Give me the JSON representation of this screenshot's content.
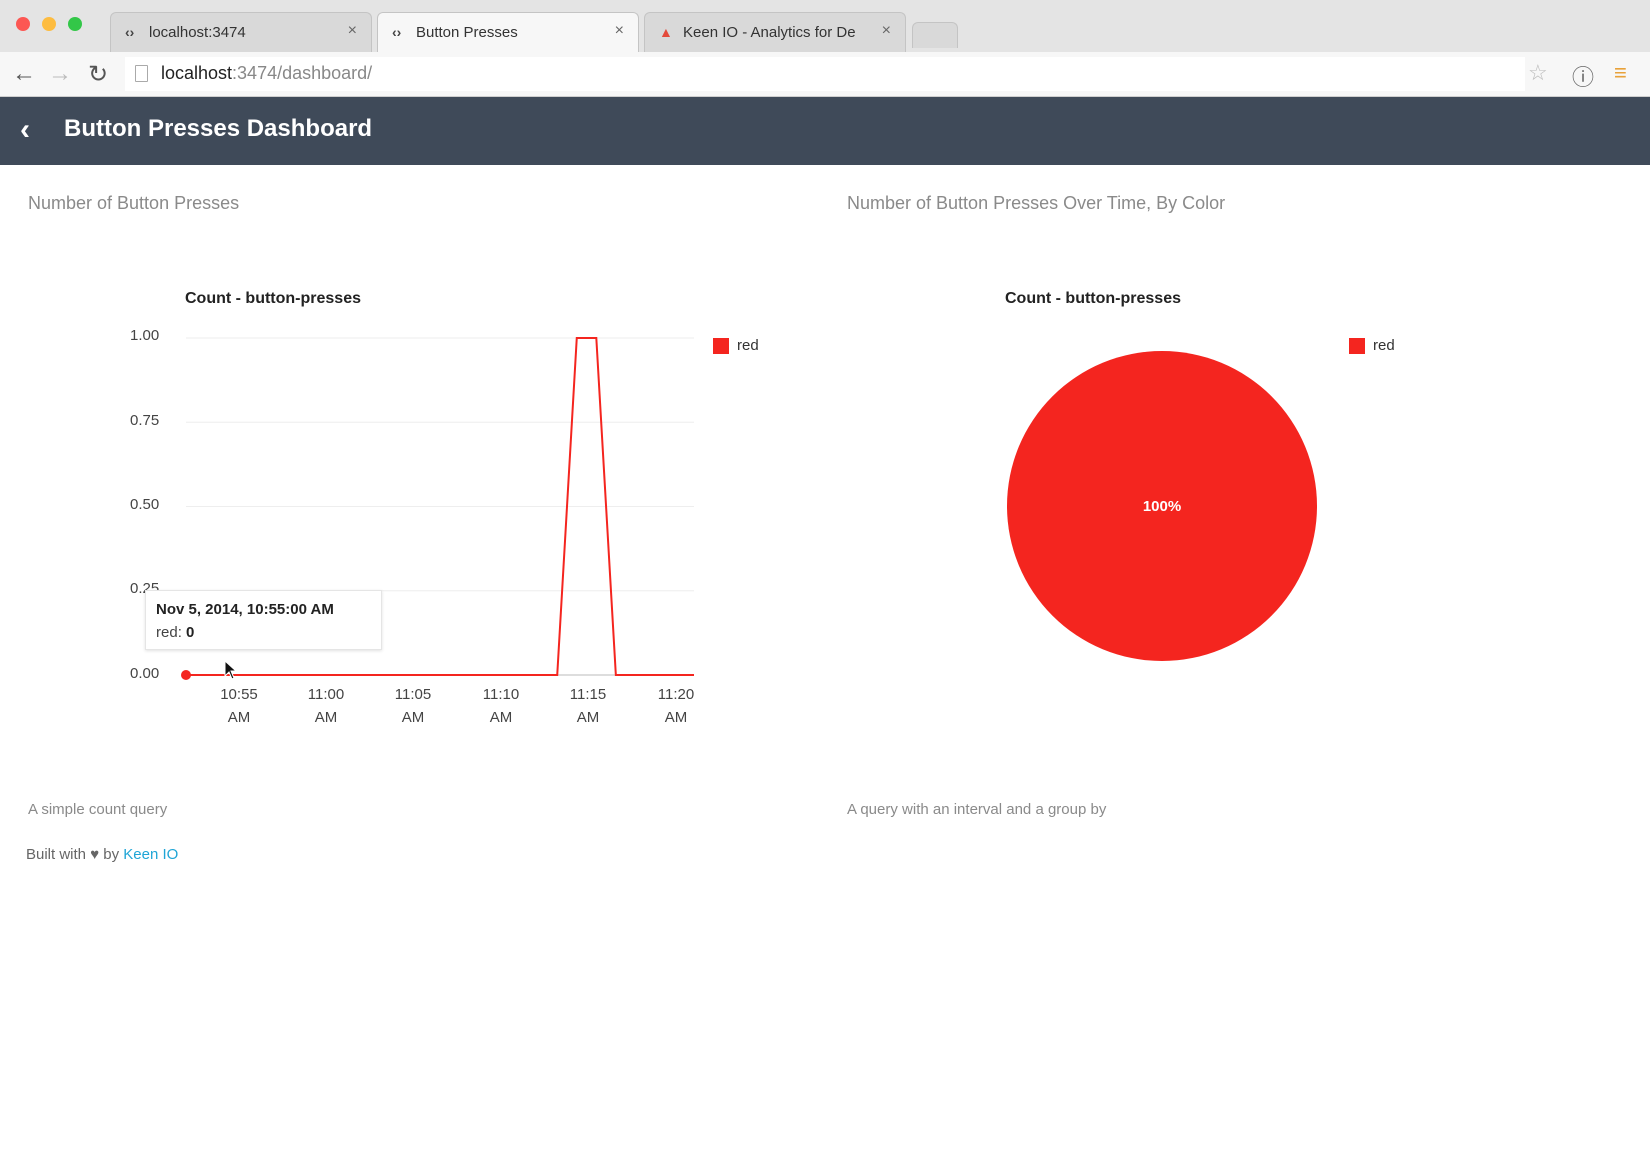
{
  "browser": {
    "tabs": [
      {
        "title": "localhost:3474",
        "active": false
      },
      {
        "title": "Button Presses",
        "active": true
      },
      {
        "title": "Keen IO - Analytics for De",
        "active": false
      }
    ],
    "url_host": "localhost",
    "url_path": ":3474/dashboard/"
  },
  "header": {
    "title": "Button Presses Dashboard"
  },
  "sections": [
    {
      "title": "Number of Button Presses",
      "note": "A simple count query"
    },
    {
      "title": "Number of Button Presses Over Time, By Color",
      "note": "A query with an interval and a group by"
    }
  ],
  "footer": {
    "prefix": "Built with",
    "heart": "♥",
    "by": "by",
    "link": "Keen IO"
  },
  "tooltip": {
    "date": "Nov 5, 2014, 10:55:00 AM",
    "series": "red",
    "value": "0"
  },
  "colors": {
    "accent": "#f4251f",
    "header_bg": "#3f4a59",
    "link": "#1fa5d6"
  },
  "chart_data": [
    {
      "type": "line",
      "title": "Count - button-presses",
      "y_ticks": [
        "1.00",
        "0.75",
        "0.50",
        "0.25",
        "0.00"
      ],
      "x_ticks": [
        {
          "line1": "10:55",
          "line2": "AM"
        },
        {
          "line1": "11:00",
          "line2": "AM"
        },
        {
          "line1": "11:05",
          "line2": "AM"
        },
        {
          "line1": "11:10",
          "line2": "AM"
        },
        {
          "line1": "11:15",
          "line2": "AM"
        },
        {
          "line1": "11:20",
          "line2": "AM"
        }
      ],
      "x_range_minutes": [
        0,
        26
      ],
      "ylim": [
        0,
        1
      ],
      "series": [
        {
          "name": "red",
          "x_minutes": [
            0,
            1,
            2,
            3,
            4,
            5,
            6,
            7,
            8,
            9,
            10,
            11,
            12,
            13,
            14,
            15,
            16,
            17,
            18,
            19,
            20,
            21,
            22,
            23,
            24,
            25,
            26
          ],
          "values": [
            0,
            0,
            0,
            0,
            0,
            0,
            0,
            0,
            0,
            0,
            0,
            0,
            0,
            0,
            0,
            0,
            0,
            0,
            0,
            0,
            1,
            1,
            0,
            0,
            0,
            0,
            0
          ]
        }
      ],
      "legend": [
        {
          "label": "red",
          "color": "#f4251f"
        }
      ],
      "legend_position": "right",
      "grid": true
    },
    {
      "type": "pie",
      "title": "Count - button-presses",
      "slices": [
        {
          "label": "red",
          "value": 100,
          "percent_label": "100%",
          "color": "#f4251f"
        }
      ],
      "legend": [
        {
          "label": "red",
          "color": "#f4251f"
        }
      ],
      "legend_position": "right"
    }
  ]
}
